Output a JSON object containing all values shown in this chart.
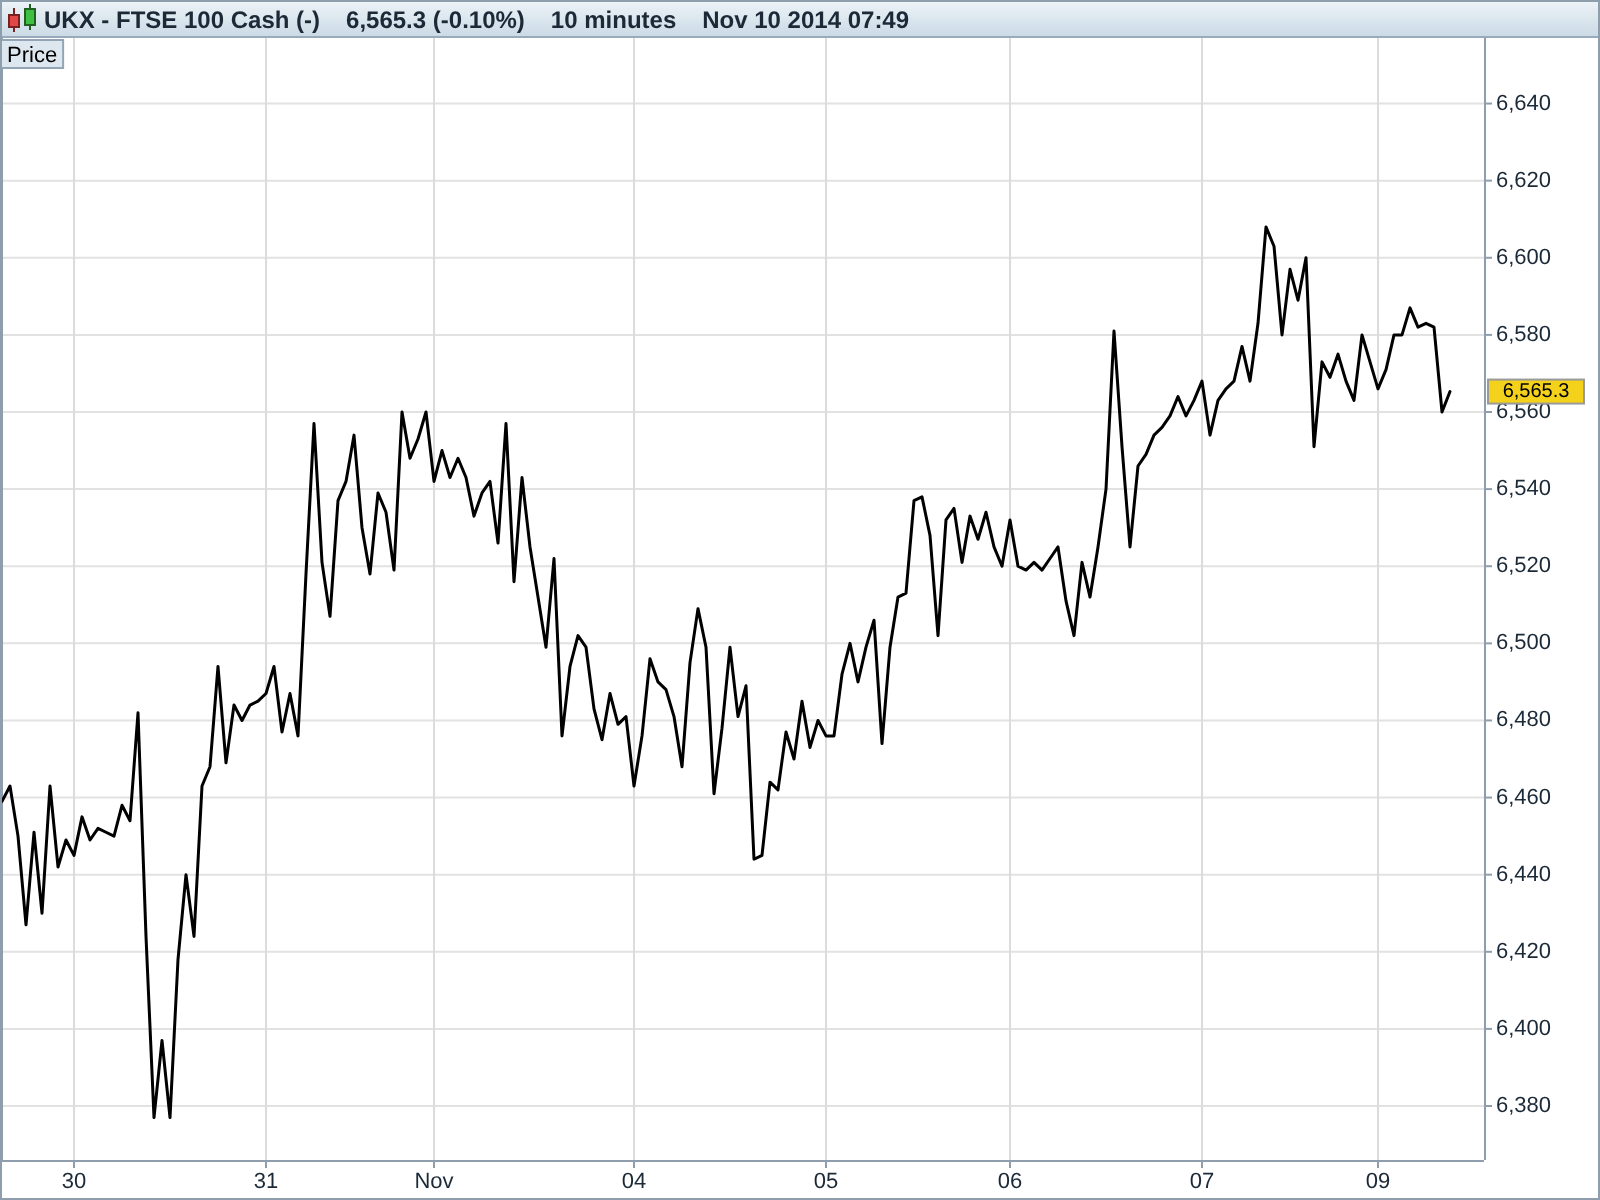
{
  "chart_data": {
    "type": "line",
    "title": "UKX - FTSE 100 Cash (-)",
    "subtitle": "6,565.3 (-0.10%)",
    "annotations": [
      "10 minutes",
      "Nov 10 2014 07:49",
      "6,565.3"
    ],
    "categories": [
      null,
      null,
      null,
      null,
      null,
      null,
      null,
      null,
      null,
      "30",
      null,
      null,
      null,
      null,
      null,
      null,
      null,
      null,
      null,
      null,
      null,
      null,
      null,
      null,
      null,
      null,
      null,
      null,
      null,
      null,
      null,
      null,
      null,
      "31",
      null,
      null,
      null,
      null,
      null,
      null,
      null,
      null,
      null,
      null,
      null,
      null,
      null,
      null,
      null,
      null,
      null,
      null,
      null,
      null,
      "Nov",
      null,
      null,
      null,
      null,
      null,
      null,
      null,
      null,
      null,
      null,
      null,
      null,
      null,
      null,
      null,
      null,
      null,
      null,
      null,
      null,
      null,
      null,
      null,
      null,
      "04",
      null,
      null,
      null,
      null,
      null,
      null,
      null,
      null,
      null,
      null,
      null,
      null,
      null,
      null,
      null,
      null,
      null,
      null,
      null,
      null,
      null,
      null,
      null,
      "05",
      null,
      null,
      null,
      null,
      null,
      null,
      null,
      null,
      null,
      null,
      null,
      null,
      null,
      null,
      null,
      null,
      null,
      null,
      null,
      null,
      null,
      null,
      "06",
      null,
      null,
      null,
      null,
      null,
      null,
      null,
      null,
      null,
      null,
      null,
      null,
      null,
      null,
      null,
      null,
      null,
      null,
      null,
      null,
      null,
      null,
      null,
      "07",
      null,
      null,
      null,
      null,
      null,
      null,
      null,
      null,
      null,
      null,
      null,
      null,
      null,
      null,
      null,
      null,
      null,
      null,
      null,
      null,
      null,
      "09",
      null,
      null,
      null,
      null,
      null,
      null,
      null,
      null,
      null
    ],
    "series": [
      {
        "name": "Price",
        "color": "#000000",
        "values": [
          6459,
          6463,
          6450,
          6427,
          6451,
          6430,
          6463,
          6442,
          6449,
          6445,
          6455,
          6449,
          6452,
          6451,
          6450,
          6458,
          6454,
          6482,
          6424,
          6377,
          6397,
          6377,
          6418,
          6440,
          6424,
          6463,
          6468,
          6494,
          6469,
          6484,
          6480,
          6484,
          6485,
          6487,
          6494,
          6477,
          6487,
          6476,
          6518,
          6557,
          6521,
          6507,
          6537,
          6542,
          6554,
          6530,
          6518,
          6539,
          6534,
          6519,
          6560,
          6548,
          6553,
          6560,
          6542,
          6550,
          6543,
          6548,
          6543,
          6533,
          6539,
          6542,
          6526,
          6557,
          6516,
          6543,
          6525,
          6512,
          6499,
          6522,
          6476,
          6494,
          6502,
          6499,
          6483,
          6475,
          6487,
          6479,
          6481,
          6463,
          6476,
          6496,
          6490,
          6488,
          6481,
          6468,
          6495,
          6509,
          6499,
          6461,
          6478,
          6499,
          6481,
          6489,
          6444,
          6445,
          6464,
          6462,
          6477,
          6470,
          6485,
          6473,
          6480,
          6476,
          6476,
          6492,
          6500,
          6490,
          6499,
          6506,
          6474,
          6499,
          6512,
          6513,
          6537,
          6538,
          6528,
          6502,
          6532,
          6535,
          6521,
          6533,
          6527,
          6534,
          6525,
          6520,
          6532,
          6520,
          6519,
          6521,
          6519,
          6522,
          6525,
          6511,
          6502,
          6521,
          6512,
          6525,
          6540,
          6581,
          6551,
          6525,
          6546,
          6549,
          6554,
          6556,
          6559,
          6564,
          6559,
          6563,
          6568,
          6554,
          6563,
          6566,
          6568,
          6577,
          6568,
          6583,
          6608,
          6603,
          6580,
          6597,
          6589,
          6600,
          6551,
          6573,
          6569,
          6575,
          6568,
          6563,
          6580,
          6573,
          6566,
          6571,
          6580,
          6580,
          6587,
          6582,
          6583,
          6582,
          6560,
          6565.3
        ]
      }
    ],
    "ylim": [
      6366,
      6657
    ],
    "yticks": [
      {
        "value": 6380,
        "label": "6,380"
      },
      {
        "value": 6400,
        "label": "6,400"
      },
      {
        "value": 6420,
        "label": "6,420"
      },
      {
        "value": 6440,
        "label": "6,440"
      },
      {
        "value": 6460,
        "label": "6,460"
      },
      {
        "value": 6480,
        "label": "6,480"
      },
      {
        "value": 6500,
        "label": "6,500"
      },
      {
        "value": 6520,
        "label": "6,520"
      },
      {
        "value": 6540,
        "label": "6,540"
      },
      {
        "value": 6560,
        "label": "6,560"
      },
      {
        "value": 6580,
        "label": "6,580"
      },
      {
        "value": 6600,
        "label": "6,600"
      },
      {
        "value": 6620,
        "label": "6,620"
      },
      {
        "value": 6640,
        "label": "6,640"
      }
    ],
    "grid": true,
    "legend": "top left"
  }
}
